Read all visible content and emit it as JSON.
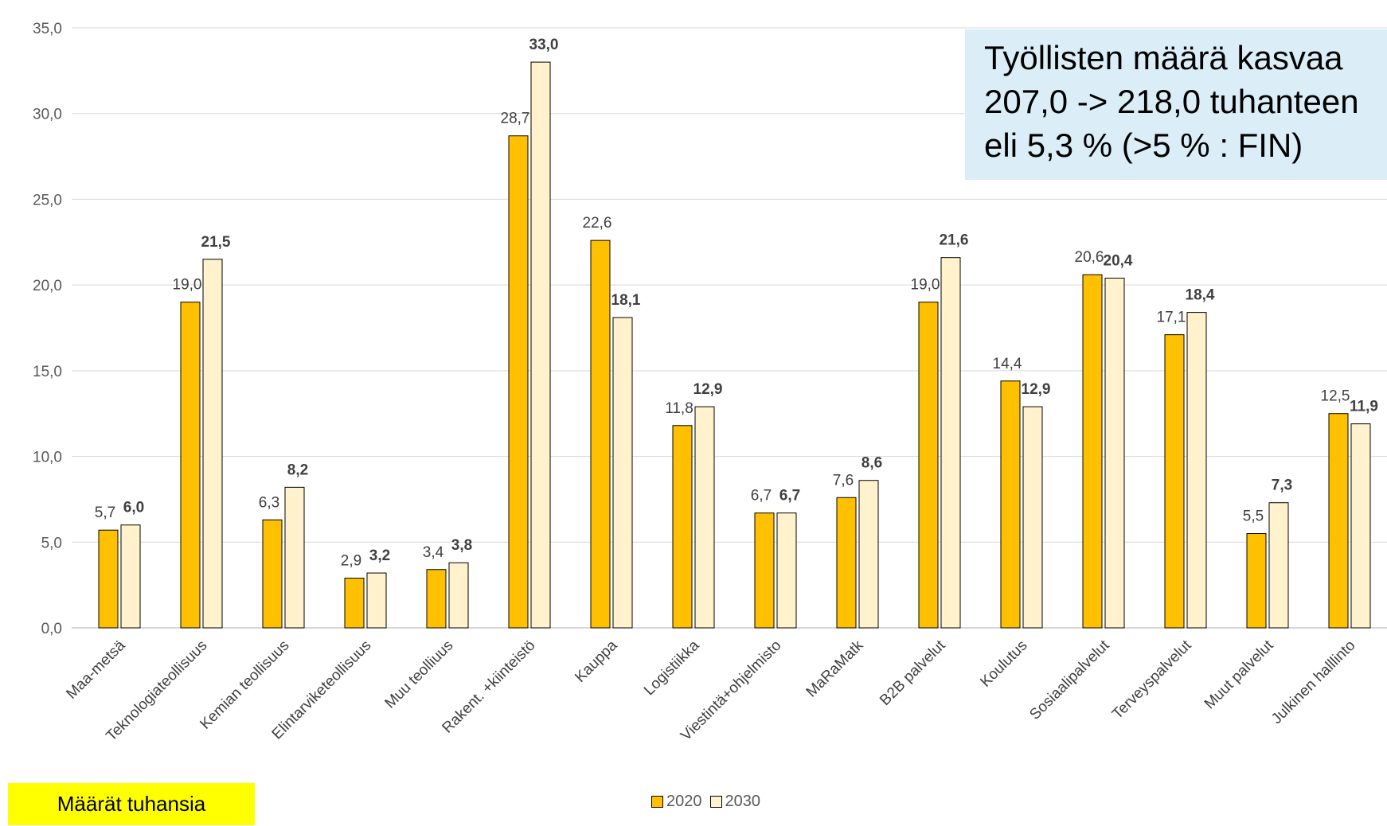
{
  "chart_data": {
    "type": "bar",
    "categories": [
      "Maa-metsä",
      "Teknologiateollisuus",
      "Kemian teollisuus",
      "Elintarviketeollisuus",
      "Muu teolliuus",
      "Rakent. +kiinteistö",
      "Kauppa",
      "Logistiikka",
      "Viestintä+ohjelmisto",
      "MaRaMatk",
      "B2B palvelut",
      "Koulutus",
      "Sosiaalipalvelut",
      "Terveyspalvelut",
      "Muut palvelut",
      "Julkinen halllinto"
    ],
    "series": [
      {
        "name": "2020",
        "color": "#ffc000",
        "values": [
          5.7,
          19.0,
          6.3,
          2.9,
          3.4,
          28.7,
          22.6,
          11.8,
          6.7,
          7.6,
          19.0,
          14.4,
          20.6,
          17.1,
          5.5,
          12.5
        ],
        "labels": [
          "5,7",
          "19,0",
          "6,3",
          "2,9",
          "3,4",
          "28,7",
          "22,6",
          "11,8",
          "6,7",
          "7,6",
          "19,0",
          "14,4",
          "20,6",
          "17,1",
          "5,5",
          "12,5"
        ]
      },
      {
        "name": "2030",
        "color": "#fff2cc",
        "values": [
          6.0,
          21.5,
          8.2,
          3.2,
          3.8,
          33.0,
          18.1,
          12.9,
          6.7,
          8.6,
          21.6,
          12.9,
          20.4,
          18.4,
          7.3,
          11.9
        ],
        "labels": [
          "6,0",
          "21,5",
          "8,2",
          "3,2",
          "3,8",
          "33,0",
          "18,1",
          "12,9",
          "6,7",
          "8,6",
          "21,6",
          "12,9",
          "20,4",
          "18,4",
          "7,3",
          "11,9"
        ]
      }
    ],
    "yticks": [
      "0,0",
      "5,0",
      "10,0",
      "15,0",
      "20,0",
      "25,0",
      "30,0",
      "35,0"
    ],
    "ylim": [
      0,
      35
    ],
    "grid": true,
    "legend_position": "bottom"
  },
  "callout": {
    "lines": [
      "Työllisten määrä kasvaa",
      "207,0 -> 218,0 tuhanteen",
      "eli 5,3 % (>5 % : FIN)"
    ],
    "background": "#dbeef7"
  },
  "note": {
    "text": "Määrät tuhansia",
    "background": "#ffff00"
  },
  "legend": {
    "items": [
      "2020",
      "2030"
    ]
  }
}
